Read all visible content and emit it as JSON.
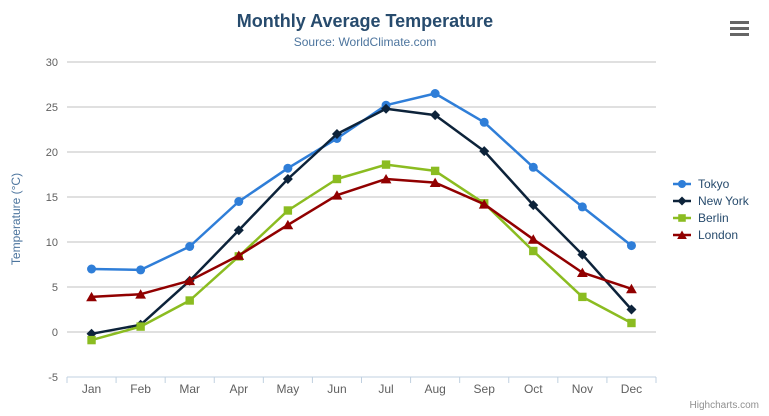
{
  "header": {
    "title": "Monthly Average Temperature",
    "subtitle": "Source: WorldClimate.com"
  },
  "credits": {
    "label": "Highcharts.com"
  },
  "export_menu": {
    "icon": "hamburger-icon"
  },
  "chart_data": {
    "type": "line",
    "title": "Monthly Average Temperature",
    "subtitle": "Source: WorldClimate.com",
    "categories": [
      "Jan",
      "Feb",
      "Mar",
      "Apr",
      "May",
      "Jun",
      "Jul",
      "Aug",
      "Sep",
      "Oct",
      "Nov",
      "Dec"
    ],
    "xlabel": "",
    "ylabel": "Temperature (°C)",
    "ylim": [
      -5,
      30
    ],
    "y_tick_interval": 5,
    "y_tick_labels": [
      "30",
      "25",
      "20",
      "15",
      "10",
      "5",
      "0",
      "-5"
    ],
    "grid": true,
    "legend_position": "right",
    "colors": {
      "grid_line": "#C0C0C0",
      "axis_line": "#C0D0E0",
      "axis_label": "#606060",
      "title": "#274b6d",
      "subtitle": "#4d759e",
      "legend_text": "#274b6d"
    },
    "series": [
      {
        "name": "Tokyo",
        "color": "#2f7ed8",
        "marker": "circle",
        "values": [
          7.0,
          6.9,
          9.5,
          14.5,
          18.2,
          21.5,
          25.2,
          26.5,
          23.3,
          18.3,
          13.9,
          9.6
        ]
      },
      {
        "name": "New York",
        "color": "#0d233a",
        "marker": "diamond",
        "values": [
          -0.2,
          0.8,
          5.7,
          11.3,
          17.0,
          22.0,
          24.8,
          24.1,
          20.1,
          14.1,
          8.6,
          2.5
        ]
      },
      {
        "name": "Berlin",
        "color": "#8bbc21",
        "marker": "square",
        "values": [
          -0.9,
          0.6,
          3.5,
          8.4,
          13.5,
          17.0,
          18.6,
          17.9,
          14.3,
          9.0,
          3.9,
          1.0
        ]
      },
      {
        "name": "London",
        "color": "#910000",
        "marker": "triangle",
        "values": [
          3.9,
          4.2,
          5.7,
          8.5,
          11.9,
          15.2,
          17.0,
          16.6,
          14.2,
          10.3,
          6.6,
          4.8
        ]
      }
    ]
  }
}
